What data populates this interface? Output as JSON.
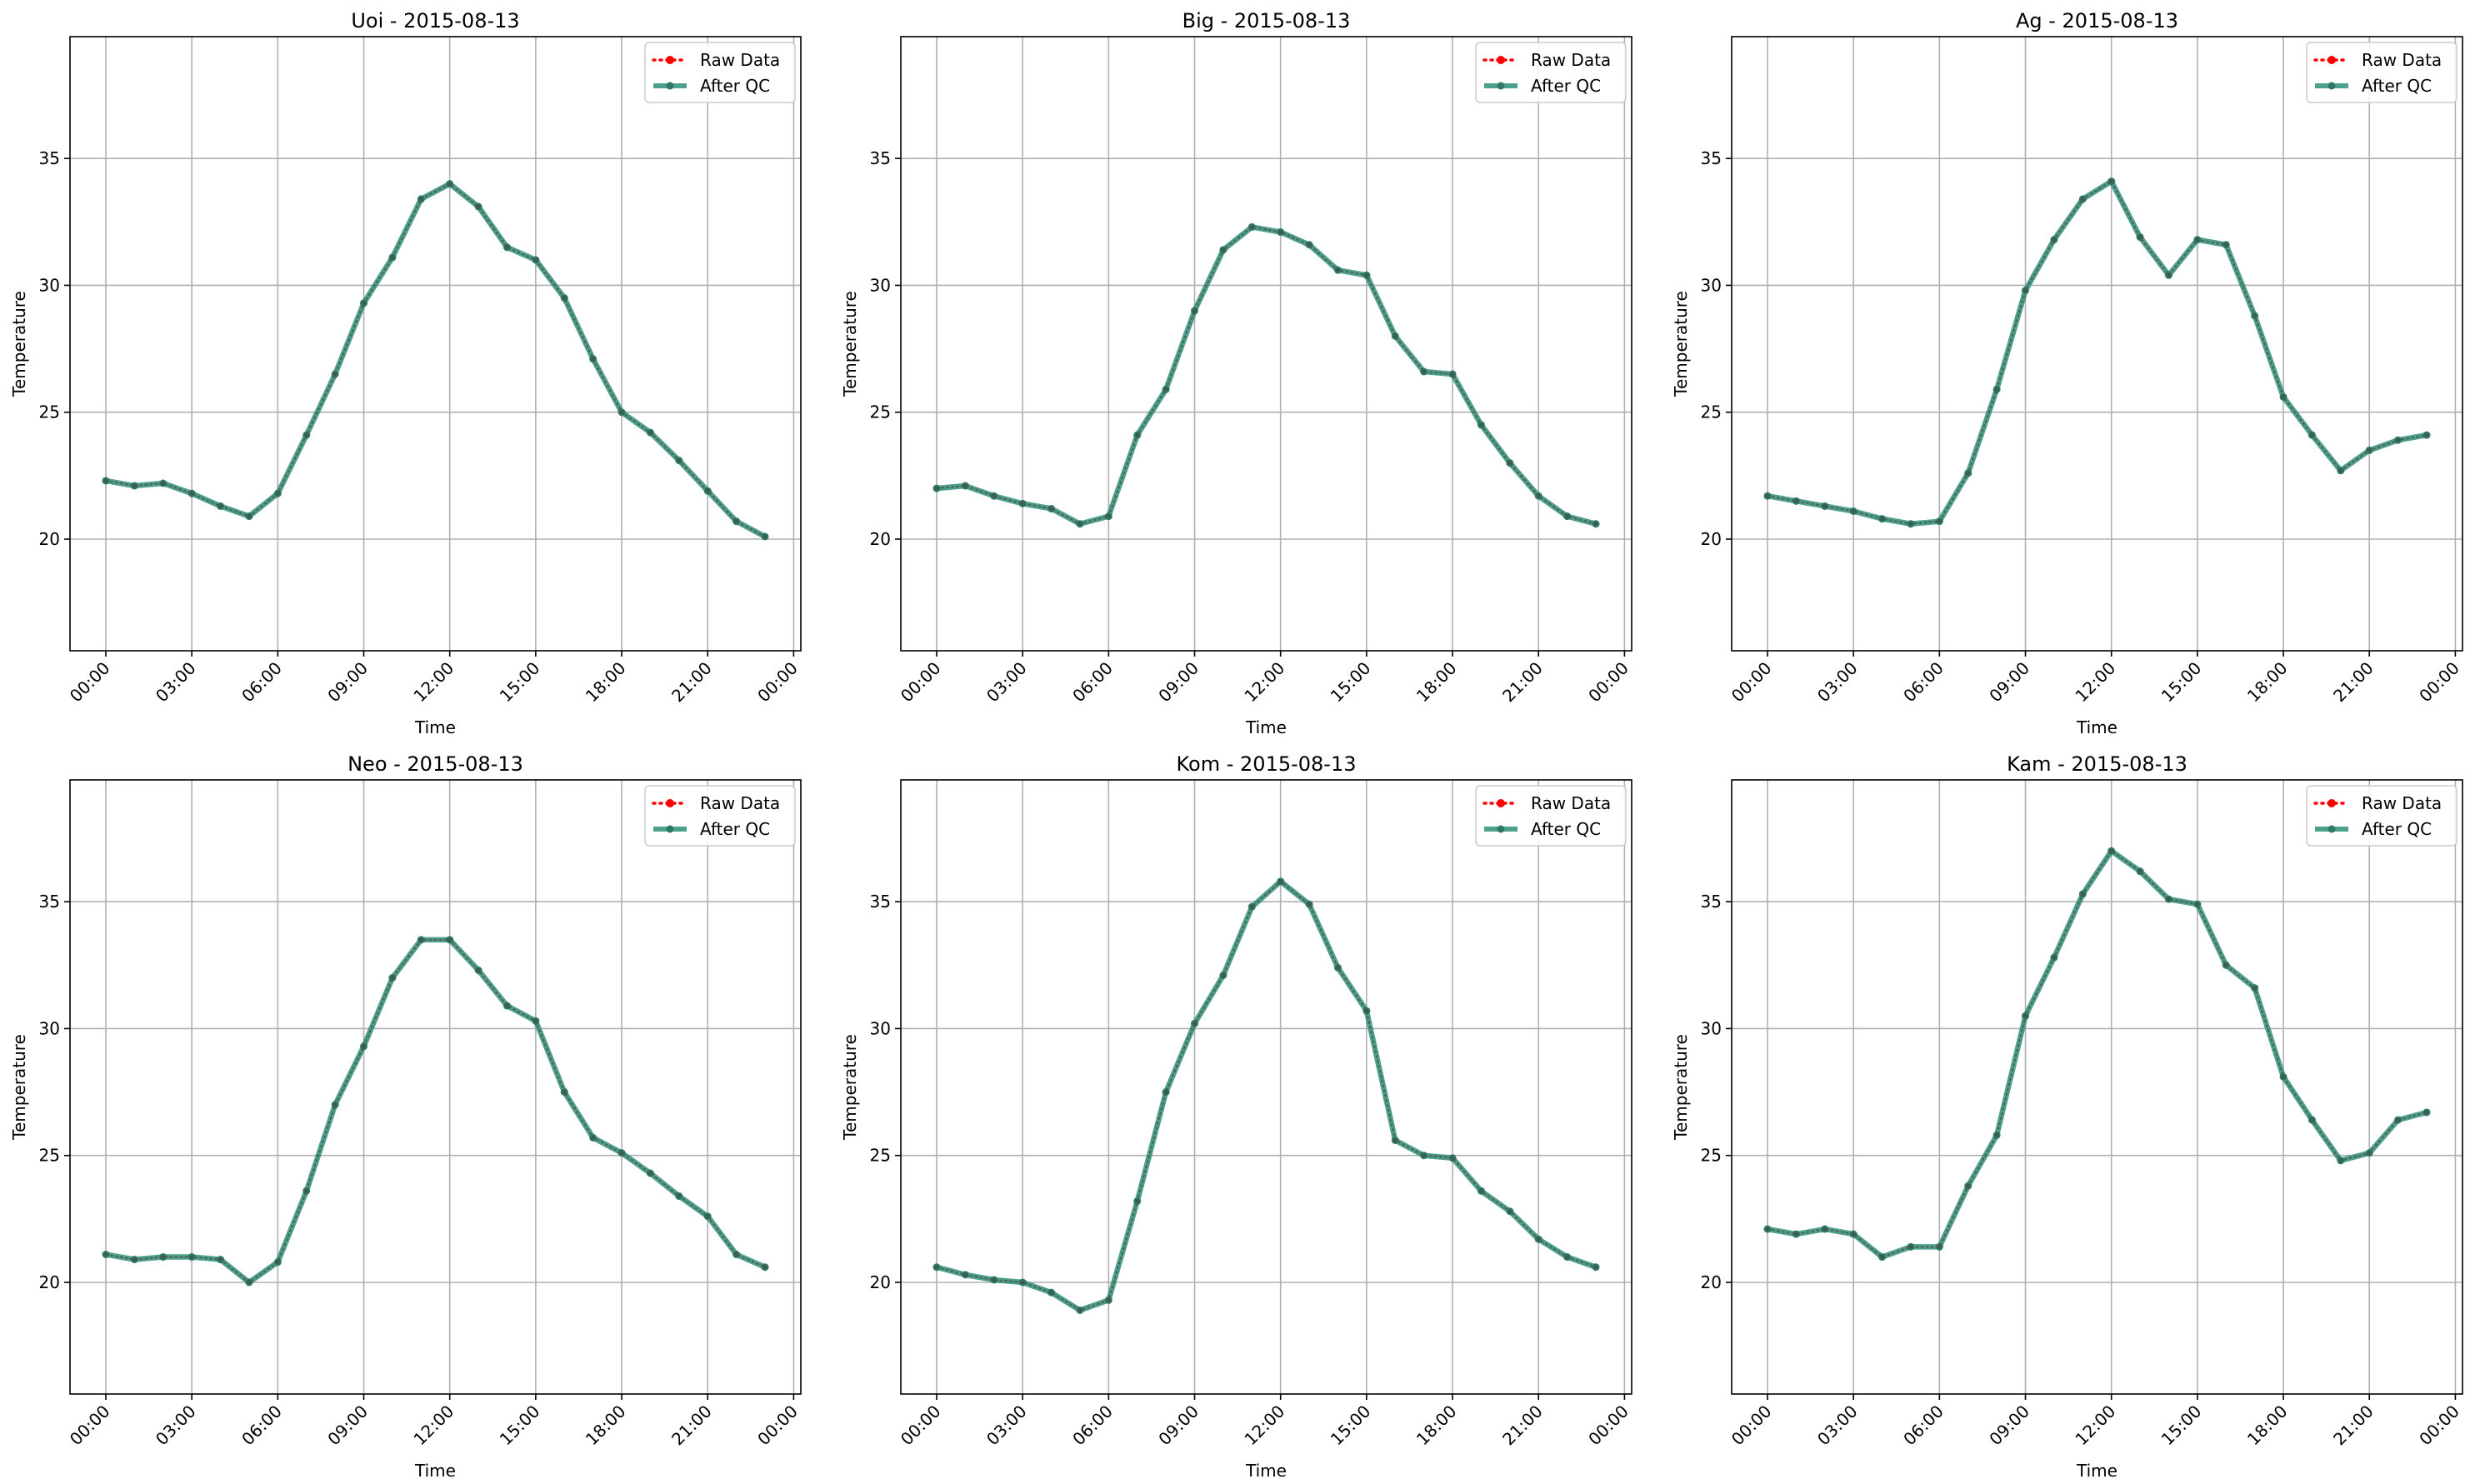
{
  "chart_data": [
    {
      "type": "line",
      "title": "Uoi - 2015-08-13",
      "xlabel": "Time",
      "ylabel": "Temperature",
      "x": [
        "00:00",
        "01:00",
        "02:00",
        "03:00",
        "04:00",
        "05:00",
        "06:00",
        "07:00",
        "08:00",
        "09:00",
        "10:00",
        "11:00",
        "12:00",
        "13:00",
        "14:00",
        "15:00",
        "16:00",
        "17:00",
        "18:00",
        "19:00",
        "20:00",
        "21:00",
        "22:00",
        "23:00"
      ],
      "xticks": [
        "00:00",
        "03:00",
        "06:00",
        "09:00",
        "12:00",
        "15:00",
        "18:00",
        "21:00",
        "00:00"
      ],
      "yticks": [
        20,
        25,
        30,
        35
      ],
      "ylim": [
        15.6,
        39.8
      ],
      "grid": true,
      "legend_position": "top-right",
      "series": [
        {
          "name": "Raw Data",
          "color": "#ff0000",
          "style": "dotted",
          "values": [
            22.3,
            22.1,
            22.2,
            21.8,
            21.3,
            20.9,
            21.8,
            24.1,
            26.5,
            29.3,
            31.1,
            33.4,
            34.0,
            33.1,
            31.5,
            31.0,
            29.5,
            27.1,
            25.0,
            24.2,
            23.1,
            21.9,
            20.7,
            20.1
          ]
        },
        {
          "name": "After QC",
          "color": "#2f8f7a",
          "style": "solid",
          "values": [
            22.3,
            22.1,
            22.2,
            21.8,
            21.3,
            20.9,
            21.8,
            24.1,
            26.5,
            29.3,
            31.1,
            33.4,
            34.0,
            33.1,
            31.5,
            31.0,
            29.5,
            27.1,
            25.0,
            24.2,
            23.1,
            21.9,
            20.7,
            20.1
          ]
        }
      ]
    },
    {
      "type": "line",
      "title": "Big - 2015-08-13",
      "xlabel": "Time",
      "ylabel": "Temperature",
      "x": [
        "00:00",
        "01:00",
        "02:00",
        "03:00",
        "04:00",
        "05:00",
        "06:00",
        "07:00",
        "08:00",
        "09:00",
        "10:00",
        "11:00",
        "12:00",
        "13:00",
        "14:00",
        "15:00",
        "16:00",
        "17:00",
        "18:00",
        "19:00",
        "20:00",
        "21:00",
        "22:00",
        "23:00"
      ],
      "xticks": [
        "00:00",
        "03:00",
        "06:00",
        "09:00",
        "12:00",
        "15:00",
        "18:00",
        "21:00",
        "00:00"
      ],
      "yticks": [
        20,
        25,
        30,
        35
      ],
      "ylim": [
        15.6,
        39.8
      ],
      "grid": true,
      "legend_position": "top-right",
      "series": [
        {
          "name": "Raw Data",
          "color": "#ff0000",
          "style": "dotted",
          "values": [
            22.0,
            22.1,
            21.7,
            21.4,
            21.2,
            20.6,
            20.9,
            24.1,
            25.9,
            29.0,
            31.4,
            32.3,
            32.1,
            31.6,
            30.6,
            30.4,
            28.0,
            26.6,
            26.5,
            24.5,
            23.0,
            21.7,
            20.9,
            20.6
          ]
        },
        {
          "name": "After QC",
          "color": "#2f8f7a",
          "style": "solid",
          "values": [
            22.0,
            22.1,
            21.7,
            21.4,
            21.2,
            20.6,
            20.9,
            24.1,
            25.9,
            29.0,
            31.4,
            32.3,
            32.1,
            31.6,
            30.6,
            30.4,
            28.0,
            26.6,
            26.5,
            24.5,
            23.0,
            21.7,
            20.9,
            20.6
          ]
        }
      ]
    },
    {
      "type": "line",
      "title": "Ag - 2015-08-13",
      "xlabel": "Time",
      "ylabel": "Temperature",
      "x": [
        "00:00",
        "01:00",
        "02:00",
        "03:00",
        "04:00",
        "05:00",
        "06:00",
        "07:00",
        "08:00",
        "09:00",
        "10:00",
        "11:00",
        "12:00",
        "13:00",
        "14:00",
        "15:00",
        "16:00",
        "17:00",
        "18:00",
        "19:00",
        "20:00",
        "21:00",
        "22:00",
        "23:00"
      ],
      "xticks": [
        "00:00",
        "03:00",
        "06:00",
        "09:00",
        "12:00",
        "15:00",
        "18:00",
        "21:00",
        "00:00"
      ],
      "yticks": [
        20,
        25,
        30,
        35
      ],
      "ylim": [
        15.6,
        39.8
      ],
      "grid": true,
      "legend_position": "top-right",
      "series": [
        {
          "name": "Raw Data",
          "color": "#ff0000",
          "style": "dotted",
          "values": [
            21.7,
            21.5,
            21.3,
            21.1,
            20.8,
            20.6,
            20.7,
            22.6,
            25.9,
            29.8,
            31.8,
            33.4,
            34.1,
            31.9,
            30.4,
            31.8,
            31.6,
            28.8,
            25.6,
            24.1,
            22.7,
            23.5,
            23.9,
            24.1
          ]
        },
        {
          "name": "After QC",
          "color": "#2f8f7a",
          "style": "solid",
          "values": [
            21.7,
            21.5,
            21.3,
            21.1,
            20.8,
            20.6,
            20.7,
            22.6,
            25.9,
            29.8,
            31.8,
            33.4,
            34.1,
            31.9,
            30.4,
            31.8,
            31.6,
            28.8,
            25.6,
            24.1,
            22.7,
            23.5,
            23.9,
            24.1
          ]
        }
      ]
    },
    {
      "type": "line",
      "title": "Neo - 2015-08-13",
      "xlabel": "Time",
      "ylabel": "Temperature",
      "x": [
        "00:00",
        "01:00",
        "02:00",
        "03:00",
        "04:00",
        "05:00",
        "06:00",
        "07:00",
        "08:00",
        "09:00",
        "10:00",
        "11:00",
        "12:00",
        "13:00",
        "14:00",
        "15:00",
        "16:00",
        "17:00",
        "18:00",
        "19:00",
        "20:00",
        "21:00",
        "22:00",
        "23:00"
      ],
      "xticks": [
        "00:00",
        "03:00",
        "06:00",
        "09:00",
        "12:00",
        "15:00",
        "18:00",
        "21:00",
        "00:00"
      ],
      "yticks": [
        20,
        25,
        30,
        35
      ],
      "ylim": [
        15.6,
        39.8
      ],
      "grid": true,
      "legend_position": "top-right",
      "series": [
        {
          "name": "Raw Data",
          "color": "#ff0000",
          "style": "dotted",
          "values": [
            21.1,
            20.9,
            21.0,
            21.0,
            20.9,
            20.0,
            20.8,
            23.6,
            27.0,
            29.3,
            32.0,
            33.5,
            33.5,
            32.3,
            30.9,
            30.3,
            27.5,
            25.7,
            25.1,
            24.3,
            23.4,
            22.6,
            21.1,
            20.6
          ]
        },
        {
          "name": "After QC",
          "color": "#2f8f7a",
          "style": "solid",
          "values": [
            21.1,
            20.9,
            21.0,
            21.0,
            20.9,
            20.0,
            20.8,
            23.6,
            27.0,
            29.3,
            32.0,
            33.5,
            33.5,
            32.3,
            30.9,
            30.3,
            27.5,
            25.7,
            25.1,
            24.3,
            23.4,
            22.6,
            21.1,
            20.6
          ]
        }
      ]
    },
    {
      "type": "line",
      "title": "Kom - 2015-08-13",
      "xlabel": "Time",
      "ylabel": "Temperature",
      "x": [
        "00:00",
        "01:00",
        "02:00",
        "03:00",
        "04:00",
        "05:00",
        "06:00",
        "07:00",
        "08:00",
        "09:00",
        "10:00",
        "11:00",
        "12:00",
        "13:00",
        "14:00",
        "15:00",
        "16:00",
        "17:00",
        "18:00",
        "19:00",
        "20:00",
        "21:00",
        "22:00",
        "23:00"
      ],
      "xticks": [
        "00:00",
        "03:00",
        "06:00",
        "09:00",
        "12:00",
        "15:00",
        "18:00",
        "21:00",
        "00:00"
      ],
      "yticks": [
        20,
        25,
        30,
        35
      ],
      "ylim": [
        15.6,
        39.8
      ],
      "grid": true,
      "legend_position": "top-right",
      "series": [
        {
          "name": "Raw Data",
          "color": "#ff0000",
          "style": "dotted",
          "values": [
            20.6,
            20.3,
            20.1,
            20.0,
            19.6,
            18.9,
            19.3,
            23.2,
            27.5,
            30.2,
            32.1,
            34.8,
            35.8,
            34.9,
            32.4,
            30.7,
            25.6,
            25.0,
            24.9,
            23.6,
            22.8,
            21.7,
            21.0,
            20.6
          ]
        },
        {
          "name": "After QC",
          "color": "#2f8f7a",
          "style": "solid",
          "values": [
            20.6,
            20.3,
            20.1,
            20.0,
            19.6,
            18.9,
            19.3,
            23.2,
            27.5,
            30.2,
            32.1,
            34.8,
            35.8,
            34.9,
            32.4,
            30.7,
            25.6,
            25.0,
            24.9,
            23.6,
            22.8,
            21.7,
            21.0,
            20.6
          ]
        }
      ]
    },
    {
      "type": "line",
      "title": "Kam - 2015-08-13",
      "xlabel": "Time",
      "ylabel": "Temperature",
      "x": [
        "00:00",
        "01:00",
        "02:00",
        "03:00",
        "04:00",
        "05:00",
        "06:00",
        "07:00",
        "08:00",
        "09:00",
        "10:00",
        "11:00",
        "12:00",
        "13:00",
        "14:00",
        "15:00",
        "16:00",
        "17:00",
        "18:00",
        "19:00",
        "20:00",
        "21:00",
        "22:00",
        "23:00"
      ],
      "xticks": [
        "00:00",
        "03:00",
        "06:00",
        "09:00",
        "12:00",
        "15:00",
        "18:00",
        "21:00",
        "00:00"
      ],
      "yticks": [
        20,
        25,
        30,
        35
      ],
      "ylim": [
        15.6,
        39.8
      ],
      "grid": true,
      "legend_position": "top-right",
      "series": [
        {
          "name": "Raw Data",
          "color": "#ff0000",
          "style": "dotted",
          "values": [
            22.1,
            21.9,
            22.1,
            21.9,
            21.0,
            21.4,
            21.4,
            23.8,
            25.8,
            30.5,
            32.8,
            35.3,
            37.0,
            36.2,
            35.1,
            34.9,
            32.5,
            31.6,
            28.1,
            26.4,
            24.8,
            25.1,
            26.4,
            26.7
          ]
        },
        {
          "name": "After QC",
          "color": "#2f8f7a",
          "style": "solid",
          "values": [
            22.1,
            21.9,
            22.1,
            21.9,
            21.0,
            21.4,
            21.4,
            23.8,
            25.8,
            30.5,
            32.8,
            35.3,
            37.0,
            36.2,
            35.1,
            34.9,
            32.5,
            31.6,
            28.1,
            26.4,
            24.8,
            25.1,
            26.4,
            26.7
          ]
        }
      ]
    }
  ]
}
